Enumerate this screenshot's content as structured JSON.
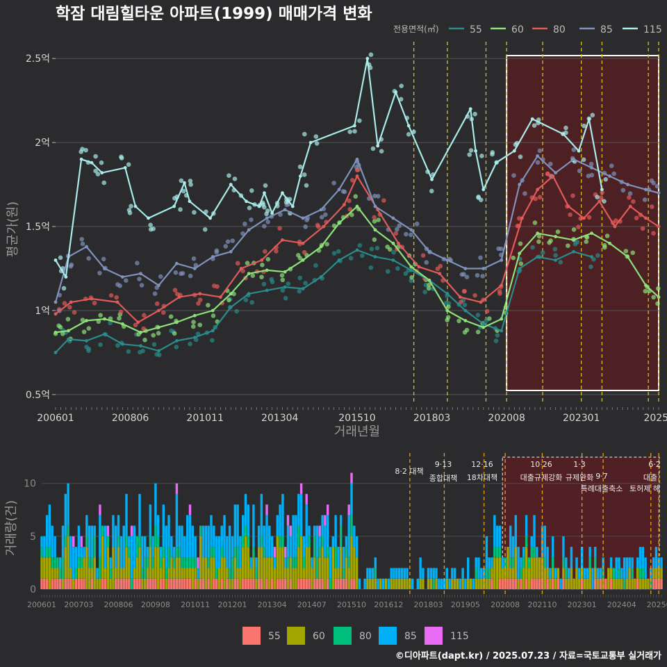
{
  "chart_data": [
    {
      "type": "line",
      "title": "학잠 대림힐타운 아파트(1999) 매매가격 변화",
      "xlabel": "거래년월",
      "ylabel": "평균가(원)",
      "legend_title": "전용면적(㎡)",
      "legend_position": "top-right",
      "x_ticks": [
        "200601",
        "200806",
        "201011",
        "201304",
        "201510",
        "201803",
        "202008",
        "202301",
        "2025"
      ],
      "y_ticks": [
        "0.5억",
        "1억",
        "1.5억",
        "2억",
        "2.5억"
      ],
      "ylim": [
        0.45,
        2.6
      ],
      "grid": true,
      "highlight_range": [
        "2020-08",
        "2025-07"
      ],
      "policy_lines": [
        "2017-08",
        "2018-09",
        "2019-12",
        "2020-08",
        "2021-10",
        "2023-01",
        "2023-09",
        "2025-03",
        "2025-07"
      ],
      "series": [
        {
          "name": "55",
          "color": "#2a8c8c",
          "x": [
            "2006-01",
            "2006-06",
            "2007-01",
            "2007-08",
            "2008-03",
            "2008-10",
            "2009-05",
            "2009-12",
            "2010-07",
            "2011-02",
            "2011-09",
            "2012-04",
            "2012-11",
            "2013-06",
            "2014-01",
            "2014-08",
            "2015-03",
            "2015-10",
            "2016-05",
            "2016-12",
            "2017-07",
            "2018-02",
            "2018-09",
            "2019-04",
            "2019-11",
            "2020-06",
            "2021-01",
            "2021-08",
            "2022-03",
            "2022-10",
            "2023-05"
          ],
          "values": [
            0.75,
            0.83,
            0.82,
            0.86,
            0.8,
            0.79,
            0.76,
            0.82,
            0.84,
            0.88,
            1.02,
            1.1,
            1.12,
            1.14,
            1.13,
            1.2,
            1.3,
            1.36,
            1.32,
            1.3,
            1.24,
            1.18,
            1.1,
            1.0,
            0.92,
            0.88,
            1.25,
            1.32,
            1.3,
            1.35,
            1.32
          ]
        },
        {
          "name": "60",
          "color": "#8ee27a",
          "x": [
            "2006-01",
            "2006-06",
            "2007-01",
            "2007-08",
            "2008-03",
            "2008-10",
            "2009-05",
            "2009-12",
            "2010-07",
            "2011-02",
            "2011-09",
            "2012-04",
            "2012-11",
            "2013-06",
            "2014-01",
            "2014-08",
            "2015-03",
            "2015-10",
            "2016-05",
            "2016-12",
            "2017-07",
            "2018-02",
            "2018-09",
            "2019-04",
            "2019-11",
            "2020-06",
            "2021-01",
            "2021-08",
            "2022-03",
            "2022-10",
            "2023-05",
            "2023-12",
            "2024-07",
            "2025-02",
            "2025-07"
          ],
          "values": [
            0.87,
            0.88,
            0.94,
            0.95,
            0.92,
            0.87,
            0.9,
            0.93,
            0.97,
            1.0,
            1.1,
            1.22,
            1.24,
            1.23,
            1.3,
            1.38,
            1.52,
            1.62,
            1.48,
            1.4,
            1.26,
            1.18,
            1.0,
            0.94,
            0.9,
            0.95,
            1.34,
            1.46,
            1.44,
            1.42,
            1.46,
            1.4,
            1.32,
            1.15,
            1.08
          ]
        },
        {
          "name": "80",
          "color": "#e25a5a",
          "x": [
            "2006-01",
            "2006-07",
            "2007-03",
            "2008-01",
            "2008-09",
            "2009-05",
            "2010-01",
            "2010-09",
            "2011-05",
            "2012-01",
            "2012-09",
            "2013-05",
            "2014-01",
            "2014-09",
            "2015-05",
            "2015-10",
            "2016-06",
            "2017-02",
            "2017-10",
            "2018-06",
            "2019-02",
            "2019-10",
            "2020-06",
            "2021-02",
            "2021-08",
            "2022-02",
            "2022-08",
            "2023-02",
            "2023-08",
            "2024-02",
            "2024-08",
            "2025-02",
            "2025-07"
          ],
          "values": [
            0.98,
            1.05,
            1.07,
            1.05,
            0.93,
            1.0,
            1.08,
            1.1,
            1.08,
            1.25,
            1.3,
            1.42,
            1.4,
            1.5,
            1.63,
            1.8,
            1.6,
            1.4,
            1.26,
            1.22,
            1.08,
            1.05,
            1.15,
            1.55,
            1.72,
            1.8,
            1.62,
            1.55,
            1.65,
            1.5,
            1.62,
            1.55,
            1.5
          ]
        },
        {
          "name": "85",
          "color": "#7f93bc",
          "x": [
            "2006-01",
            "2006-06",
            "2007-01",
            "2007-08",
            "2008-03",
            "2008-10",
            "2009-05",
            "2009-12",
            "2010-07",
            "2011-02",
            "2011-09",
            "2012-04",
            "2012-11",
            "2013-06",
            "2014-01",
            "2014-08",
            "2015-03",
            "2015-10",
            "2016-05",
            "2016-12",
            "2017-07",
            "2018-02",
            "2018-09",
            "2019-04",
            "2019-11",
            "2020-06",
            "2021-01",
            "2021-08",
            "2022-03",
            "2022-10",
            "2023-05",
            "2023-12",
            "2024-07",
            "2025-02",
            "2025-07"
          ],
          "values": [
            1.05,
            1.32,
            1.38,
            1.25,
            1.2,
            1.22,
            1.15,
            1.28,
            1.25,
            1.32,
            1.35,
            1.48,
            1.55,
            1.6,
            1.55,
            1.6,
            1.72,
            1.9,
            1.62,
            1.55,
            1.48,
            1.35,
            1.3,
            1.25,
            1.25,
            1.3,
            1.75,
            1.92,
            1.82,
            1.9,
            1.85,
            1.8,
            1.75,
            1.72,
            1.7
          ]
        },
        {
          "name": "115",
          "color": "#a9ecea",
          "x": [
            "2006-01",
            "2006-05",
            "2006-11",
            "2007-03",
            "2007-07",
            "2008-04",
            "2008-08",
            "2009-01",
            "2009-11",
            "2010-03",
            "2010-05",
            "2011-01",
            "2011-09",
            "2012-03",
            "2012-08",
            "2012-10",
            "2013-01",
            "2013-05",
            "2013-09",
            "2013-12",
            "2014-04",
            "2015-09",
            "2016-02",
            "2016-06",
            "2017-01",
            "2017-06",
            "2018-03",
            "2019-06",
            "2019-08",
            "2019-11",
            "2020-04",
            "2020-11",
            "2021-06",
            "2022-06",
            "2022-12",
            "2023-04",
            "2023-09"
          ],
          "values": [
            1.3,
            1.2,
            1.9,
            1.88,
            1.82,
            1.85,
            1.62,
            1.55,
            1.62,
            1.76,
            1.65,
            1.55,
            1.75,
            1.65,
            1.62,
            1.7,
            1.58,
            1.7,
            1.62,
            1.8,
            2.0,
            2.1,
            2.5,
            1.98,
            2.3,
            2.1,
            1.78,
            2.2,
            1.95,
            1.72,
            1.88,
            1.95,
            2.14,
            2.05,
            1.95,
            2.14,
            1.72
          ]
        }
      ]
    },
    {
      "type": "bar",
      "stacked": true,
      "ylabel": "거래량(건)",
      "x_ticks": [
        "200601",
        "200703",
        "200806",
        "200908",
        "201011",
        "201201",
        "201304",
        "201407",
        "201510",
        "201612",
        "201803",
        "201905",
        "202008",
        "202110",
        "202301",
        "202404",
        "20250"
      ],
      "y_ticks": [
        "0",
        "5",
        "10"
      ],
      "ylim": [
        0,
        13
      ],
      "series_names": [
        "55",
        "60",
        "80",
        "85",
        "115"
      ],
      "series_colors": [
        "#f8766d",
        "#a3a500",
        "#00bf7d",
        "#00b0f6",
        "#e76bf3"
      ],
      "monthly_avg": [
        0.6,
        1.6,
        0.7,
        1.9,
        0.25
      ],
      "annotations": [
        {
          "text": "8·2 대책",
          "date": "2017-08"
        },
        {
          "text": "9·13",
          "date": "2018-09"
        },
        {
          "text": "종합대책",
          "date": "2018-09"
        },
        {
          "text": "12·16",
          "date": "2019-12"
        },
        {
          "text": "18차대책",
          "date": "2019-12"
        },
        {
          "text": "10·26",
          "date": "2021-10"
        },
        {
          "text": "대출규제강화",
          "date": "2021-10"
        },
        {
          "text": "1·3",
          "date": "2023-01"
        },
        {
          "text": "규제완화",
          "date": "2023-01"
        },
        {
          "text": "9·7",
          "date": "2023-09"
        },
        {
          "text": "특례대출축소",
          "date": "2023-09"
        },
        {
          "text": "토허제 해",
          "date": "2025-03"
        },
        {
          "text": "6·2",
          "date": "2025-06"
        },
        {
          "text": "대출",
          "date": "2025-06"
        }
      ]
    }
  ],
  "credit": "©디아파트(dapt.kr) / 2025.07.23 / 자료=국토교통부 실거래가"
}
